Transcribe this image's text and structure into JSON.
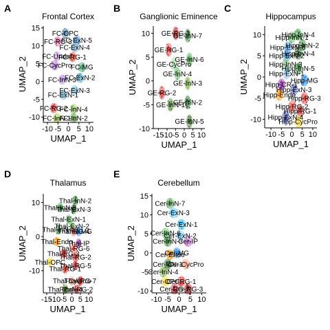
{
  "chart_data": [
    {
      "type": "scatter",
      "panel_label": "A",
      "title": "Frontal Cortex",
      "xlabel": "UMAP_1",
      "ylabel": "UMAP_2",
      "xlim": [
        -12,
        12
      ],
      "ylim": [
        -11.5,
        15.5
      ],
      "xticks": [
        -10,
        -5,
        0,
        5,
        10
      ],
      "yticks": [
        -10,
        -5,
        0,
        5,
        10,
        15
      ],
      "xtick_labels": [
        "-10",
        "-5",
        "0",
        "5",
        "10"
      ],
      "ytick_labels": [
        "-10",
        "-5",
        "0",
        "5",
        "10",
        "15"
      ],
      "clusters": [
        {
          "name": "FC-OPC",
          "x": -1.5,
          "y": 13.5,
          "color": "#4a7a9c"
        },
        {
          "name": "FC-ExN-5",
          "x": 4,
          "y": 11.5,
          "color": "#5b8fc7"
        },
        {
          "name": "FC-RG-3",
          "x": -5,
          "y": 11.2,
          "color": "#e56ba6"
        },
        {
          "name": "FC-ExN-4",
          "x": 3,
          "y": 9.5,
          "color": "#6cb0d6"
        },
        {
          "name": "FC-Undef",
          "x": -5.5,
          "y": 7,
          "color": "#c9a0dc"
        },
        {
          "name": "FC-RG-1",
          "x": 2,
          "y": 6.8,
          "color": "#e8452b"
        },
        {
          "name": "FC-MG",
          "x": 6.5,
          "y": 4,
          "color": "#3fa46b"
        },
        {
          "name": "FC-CycPro",
          "x": -6.5,
          "y": 4.5,
          "color": "#a86bd1"
        },
        {
          "name": "FC-ExN-2",
          "x": 5.5,
          "y": 1,
          "color": "#4aa3c9"
        },
        {
          "name": "FC-InN-3",
          "x": -3,
          "y": 0.5,
          "color": "#b58ee0"
        },
        {
          "name": "FC-ExN-3",
          "x": 3,
          "y": -2.5,
          "color": "#7ec0e0"
        },
        {
          "name": "FC-ExN-1",
          "x": -2.5,
          "y": -3.8,
          "color": "#7ab5d4"
        },
        {
          "name": "FC-InN-4",
          "x": 2.5,
          "y": -7.8,
          "color": "#8ac34a"
        },
        {
          "name": "FC-RG-2",
          "x": -7,
          "y": -7.5,
          "color": "#e02c2c"
        },
        {
          "name": "FC-InN-1",
          "x": -5.5,
          "y": -10.3,
          "color": "#9ccc3c"
        },
        {
          "name": "FC-InN-2",
          "x": 2.5,
          "y": -10.3,
          "color": "#6aa84f"
        }
      ]
    },
    {
      "type": "scatter",
      "panel_label": "B",
      "title": "Ganglionic Eminence",
      "xlabel": "UMAP_1",
      "ylabel": "UMAP_2",
      "xlim": [
        -18,
        12
      ],
      "ylim": [
        -10,
        11.5
      ],
      "xticks": [
        -15,
        -10,
        -5,
        0,
        5,
        10
      ],
      "yticks": [
        -10,
        -5,
        0,
        5,
        10
      ],
      "xtick_labels": [
        "-15",
        "-10",
        "-5",
        "0",
        "5",
        "10"
      ],
      "ytick_labels": [
        "-10",
        "-5",
        "0",
        "5",
        "10"
      ],
      "clusters": [
        {
          "name": "GE-RG-3",
          "x": -5,
          "y": 10,
          "color": "#c9262c"
        },
        {
          "name": "GE-InN-7",
          "x": 2,
          "y": 9.5,
          "color": "#2e7d32"
        },
        {
          "name": "GE-RG-1",
          "x": -9,
          "y": 6.5,
          "color": "#e53935"
        },
        {
          "name": "GE-InN-6",
          "x": 3,
          "y": 4.5,
          "color": "#43a047"
        },
        {
          "name": "GE-CycPro",
          "x": -6,
          "y": 3.5,
          "color": "#a5d6a7"
        },
        {
          "name": "GE-InN-4",
          "x": -4,
          "y": 1.5,
          "color": "#66bb6a"
        },
        {
          "name": "GE-InN-3",
          "x": 2,
          "y": -0.5,
          "color": "#7cb342"
        },
        {
          "name": "GE-RG-2",
          "x": -13,
          "y": -2.5,
          "color": "#d32f2f"
        },
        {
          "name": "GE-InN-1",
          "x": -8,
          "y": -5,
          "color": "#558b2f"
        },
        {
          "name": "GE-InN-2",
          "x": 2,
          "y": -4.5,
          "color": "#1b5e20"
        },
        {
          "name": "GE-InN-5",
          "x": 3,
          "y": -8.5,
          "color": "#33691e"
        }
      ]
    },
    {
      "type": "scatter",
      "panel_label": "C",
      "title": "Hippocampus",
      "xlabel": "UMAP_1",
      "ylabel": "UMAP_2",
      "xlim": [
        -13,
        12
      ],
      "ylim": [
        -12,
        12
      ],
      "xticks": [
        -10,
        -5,
        0,
        5,
        10
      ],
      "yticks": [
        -10,
        -5,
        0,
        5,
        10
      ],
      "xtick_labels": [
        "-10",
        "-5",
        "0",
        "5",
        "10"
      ],
      "ytick_labels": [
        "-10",
        "-5",
        "0",
        "5",
        "10"
      ],
      "clusters": [
        {
          "name": "Hipp-InN-4",
          "x": 3,
          "y": 10,
          "color": "#43a047"
        },
        {
          "name": "Hipp-InN-1",
          "x": 0,
          "y": 9.3,
          "color": "#66bb6a"
        },
        {
          "name": "Hipp-InN-2",
          "x": 5,
          "y": 7.5,
          "color": "#2e7d32"
        },
        {
          "name": "Hipp-ExN-6",
          "x": -2,
          "y": 7,
          "color": "#64b5f6"
        },
        {
          "name": "Hipp-InN-4",
          "x": 3,
          "y": 5.5,
          "color": "#1b5e20"
        },
        {
          "name": "Hipp-ExN-2",
          "x": -2.5,
          "y": 5,
          "color": "#42a5f5"
        },
        {
          "name": "Hipp-InN-3",
          "x": -3,
          "y": 3,
          "color": "#81c784"
        },
        {
          "name": "Hipp-InN-5",
          "x": 3,
          "y": 2,
          "color": "#388e3c"
        },
        {
          "name": "Hipp-ExN-1",
          "x": -2.5,
          "y": 0.8,
          "color": "#90caf9"
        },
        {
          "name": "Hipp-MG",
          "x": 6,
          "y": -0.8,
          "color": "#1e88e5"
        },
        {
          "name": "Hipp-CR-1",
          "x": -5,
          "y": -1.8,
          "color": "#8e24aa"
        },
        {
          "name": "Hipp-ExN-3",
          "x": 1,
          "y": -3,
          "color": "#5c6bc0"
        },
        {
          "name": "Hipp-Endo",
          "x": -6,
          "y": -4.2,
          "color": "#ff9800"
        },
        {
          "name": "Hipp-RG-3",
          "x": 6,
          "y": -5,
          "color": "#e53935"
        },
        {
          "name": "Hipp-RG-2",
          "x": 0,
          "y": -7,
          "color": "#ef5350"
        },
        {
          "name": "Hipp-RG-1",
          "x": 4,
          "y": -8,
          "color": "#c62828"
        },
        {
          "name": "Hipp-ExN-4",
          "x": -3,
          "y": -9.5,
          "color": "#3949ab"
        },
        {
          "name": "Hipp-CycPro",
          "x": 3,
          "y": -10.5,
          "color": "#fdd835"
        }
      ]
    },
    {
      "type": "scatter",
      "panel_label": "D",
      "title": "Thalamus",
      "xlabel": "UMAP_1",
      "ylabel": "UMAP_2",
      "xlim": [
        -17,
        12
      ],
      "ylim": [
        -16.5,
        12.5
      ],
      "xticks": [
        -15,
        -10,
        -5,
        0,
        5,
        10
      ],
      "yticks": [
        -10,
        0,
        10
      ],
      "xtick_labels": [
        "-15",
        "-10",
        "-5",
        "0",
        "5",
        "10"
      ],
      "ytick_labels": [
        "-10",
        "0",
        "10"
      ],
      "clusters": [
        {
          "name": "Thal-InN-2",
          "x": 2,
          "y": 10.5,
          "color": "#2e7d32"
        },
        {
          "name": "Thal-InN-3",
          "x": -7,
          "y": 8.5,
          "color": "#43a047"
        },
        {
          "name": "Thal-ExN-3",
          "x": 1,
          "y": 8,
          "color": "#1b5e20"
        },
        {
          "name": "Thal-ExN-1",
          "x": -2,
          "y": 5,
          "color": "#66bb6a"
        },
        {
          "name": "Thal-ExN-2",
          "x": 0,
          "y": 3,
          "color": "#81c784"
        },
        {
          "name": "Thal-InN-1",
          "x": -8,
          "y": 2,
          "color": "#388e3c"
        },
        {
          "name": "Thal-RG-4",
          "x": 1,
          "y": 1.5,
          "color": "#e57373"
        },
        {
          "name": "Thal-MG",
          "x": 4,
          "y": 1.5,
          "color": "#1e88e5"
        },
        {
          "name": "Thal-Endo",
          "x": -9,
          "y": -1.5,
          "color": "#ff9800"
        },
        {
          "name": "Thal-IP",
          "x": 4,
          "y": -2,
          "color": "#ab47bc"
        },
        {
          "name": "Thal-RG-6",
          "x": 1,
          "y": -3.5,
          "color": "#ef5350"
        },
        {
          "name": "Thal-RG-3",
          "x": -5,
          "y": -5,
          "color": "#c62828"
        },
        {
          "name": "Thal-RG-2",
          "x": 2,
          "y": -6,
          "color": "#e53935"
        },
        {
          "name": "Thal-OPC",
          "x": -13,
          "y": -7.5,
          "color": "#fdd835"
        },
        {
          "name": "Thal-RG-5",
          "x": 2,
          "y": -8.5,
          "color": "#d32f2f"
        },
        {
          "name": "Thal-RG-1",
          "x": -4,
          "y": -9.5,
          "color": "#f44336"
        },
        {
          "name": "Thal-CycPro",
          "x": 0,
          "y": -13,
          "color": "#ffab91"
        },
        {
          "name": "Thal-RG-7",
          "x": 5,
          "y": -13,
          "color": "#b71c1c"
        },
        {
          "name": "Thal-ExN-4",
          "x": -4,
          "y": -15.5,
          "color": "#558b2f"
        },
        {
          "name": "Thal-RG-2",
          "x": 3,
          "y": -15.5,
          "color": "#e53935"
        }
      ]
    },
    {
      "type": "scatter",
      "panel_label": "E",
      "title": "Cerebellum",
      "xlabel": "UMAP_1",
      "ylabel": "UMAP_2",
      "xlim": [
        -12,
        12
      ],
      "ylim": [
        -10.5,
        15.5
      ],
      "xticks": [
        -10,
        -5,
        0,
        5,
        10
      ],
      "yticks": [
        -10,
        -5,
        0,
        5,
        10,
        15
      ],
      "xtick_labels": [
        "-10",
        "-5",
        "0",
        "5",
        "10"
      ],
      "ytick_labels": [
        "-10",
        "-5",
        "0",
        "5",
        "10",
        "15"
      ],
      "clusters": [
        {
          "name": "Cer-InN-7",
          "x": -4,
          "y": 13,
          "color": "#43a047"
        },
        {
          "name": "Cer-ExN-3",
          "x": -2.5,
          "y": 10.5,
          "color": "#4fc3f7"
        },
        {
          "name": "Cer-ExN-1",
          "x": 1,
          "y": 7.5,
          "color": "#29b6f6"
        },
        {
          "name": "Cer-InN-6",
          "x": -6,
          "y": 5.2,
          "color": "#66bb6a"
        },
        {
          "name": "Cer-ExN-2",
          "x": 0.5,
          "y": 4.5,
          "color": "#81d4fa"
        },
        {
          "name": "Cer-InN-3",
          "x": -5,
          "y": 3,
          "color": "#2e7d32"
        },
        {
          "name": "Cer-IP",
          "x": 4,
          "y": 3,
          "color": "#ba68c8"
        },
        {
          "name": "Cer-MG",
          "x": -1,
          "y": 0,
          "color": "#1e88e5"
        },
        {
          "name": "Cer-Endo",
          "x": -4,
          "y": -0.5,
          "color": "#ff9800"
        },
        {
          "name": "Cer-InN-1",
          "x": -5,
          "y": -3,
          "color": "#1b5e20"
        },
        {
          "name": "Cer-CycPro",
          "x": 3,
          "y": -3,
          "color": "#ffab91"
        },
        {
          "name": "Cer-InN-4",
          "x": -7,
          "y": -5,
          "color": "#7cb342"
        },
        {
          "name": "Cer-OPC",
          "x": -6,
          "y": -7.5,
          "color": "#fdd835"
        },
        {
          "name": "Cer-RG-1",
          "x": 1,
          "y": -7.5,
          "color": "#e53935"
        },
        {
          "name": "Cer-RG-2",
          "x": -2,
          "y": -9.5,
          "color": "#c62828"
        },
        {
          "name": "Cer-RG-3",
          "x": 4,
          "y": -9.5,
          "color": "#b71c1c"
        }
      ]
    }
  ]
}
